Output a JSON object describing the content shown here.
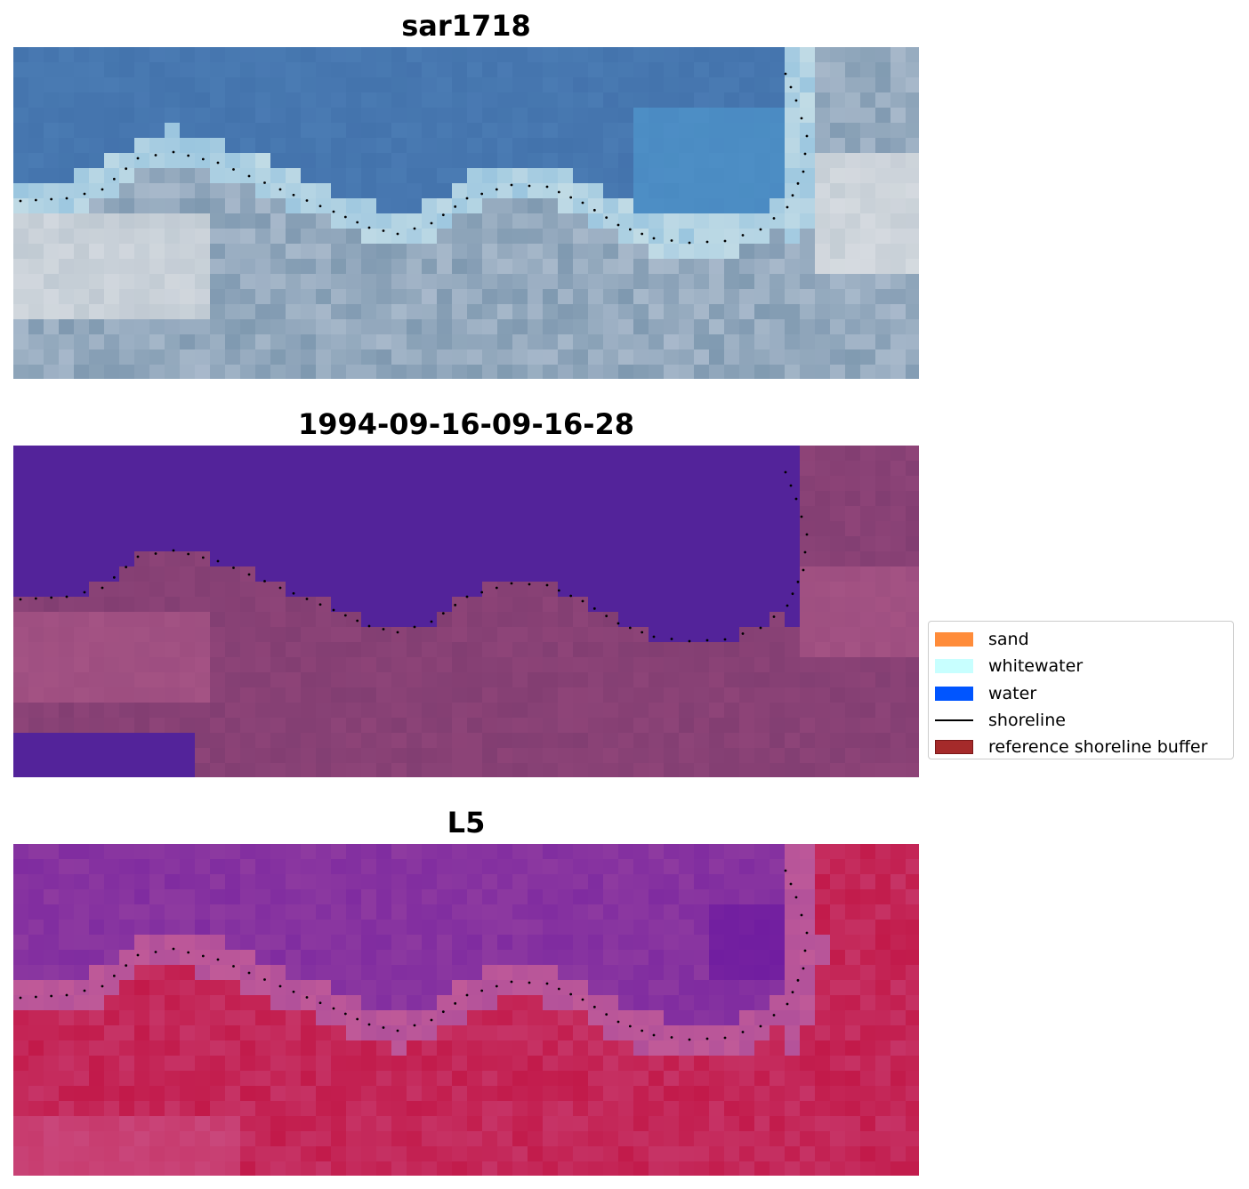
{
  "panels": [
    {
      "id": "rgb",
      "title": "sar1718",
      "palette": {
        "water_deep": "#3f6ea8",
        "water_mid": "#4a7bb3",
        "water_light": "#4f9bd1",
        "surf": "#e6f0ec",
        "land": "#7f99b0",
        "land_light": "#b9c6d6",
        "bright": "#f4f1ee"
      }
    },
    {
      "id": "classified",
      "title": "1994-09-16-09-16-28",
      "palette": {
        "water": "#53239a",
        "land": "#8e4478",
        "land_dark": "#7a3a6e",
        "land_pink": "#b05a8a"
      }
    },
    {
      "id": "mndwi",
      "title": "L5",
      "palette": {
        "water": "#8e3aa0",
        "water_deep": "#6a17a0",
        "edge": "#c05a98",
        "land": "#c21a4a",
        "land_light": "#cc5a90"
      }
    }
  ],
  "legend": {
    "items": [
      {
        "label": "sand",
        "color": "#ff8c3a",
        "kind": "patch"
      },
      {
        "label": "whitewater",
        "color": "#c8ffff",
        "kind": "patch"
      },
      {
        "label": "water",
        "color": "#0055ff",
        "kind": "patch"
      },
      {
        "label": "shoreline",
        "color": "#000000",
        "kind": "line"
      },
      {
        "label": "reference shoreline buffer",
        "color": "#a52a2a",
        "kind": "patch"
      }
    ]
  }
}
